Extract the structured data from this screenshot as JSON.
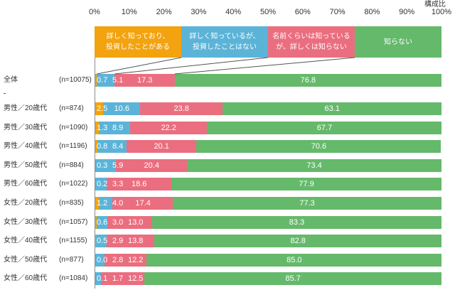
{
  "chart_data": {
    "type": "bar",
    "orientation": "horizontal",
    "stacked": true,
    "axis_title": "構成比",
    "x_ticks": [
      "0%",
      "10%",
      "20%",
      "30%",
      "40%",
      "50%",
      "60%",
      "70%",
      "80%",
      "90%",
      "100%"
    ],
    "xlim": [
      0,
      100
    ],
    "grid": false,
    "legend": "top",
    "data_label_color": "#FFFFFF",
    "categories": [
      "全体",
      "男性／20歳代",
      "男性／30歳代",
      "男性／40歳代",
      "男性／50歳代",
      "男性／60歳代",
      "女性／20歳代",
      "女性／30歳代",
      "女性／40歳代",
      "女性／50歳代",
      "女性／60歳代"
    ],
    "n_labels": [
      "(n=10075)",
      "(n=874)",
      "(n=1090)",
      "(n=1196)",
      "(n=884)",
      "(n=1022)",
      "(n=835)",
      "(n=1057)",
      "(n=1155)",
      "(n=877)",
      "(n=1084)"
    ],
    "series": [
      {
        "name_lines": [
          "詳しく知っており、",
          "投資したことがある"
        ],
        "color": "#F2A30F",
        "values": [
          0.7,
          2.5,
          1.3,
          0.8,
          0.3,
          0.2,
          1.2,
          0.6,
          0.5,
          0.0,
          0.1
        ]
      },
      {
        "name_lines": [
          "詳しく知っているが、",
          "投資したことはない"
        ],
        "color": "#5BB4D8",
        "values": [
          5.1,
          10.6,
          8.9,
          8.4,
          5.9,
          3.3,
          4.0,
          3.0,
          2.9,
          2.8,
          1.7
        ]
      },
      {
        "name_lines": [
          "名前くらいは知っている",
          "が、詳しくは知らない"
        ],
        "color": "#EA6E7F",
        "values": [
          17.3,
          23.8,
          22.2,
          20.1,
          20.4,
          18.6,
          17.4,
          13.0,
          13.8,
          12.2,
          12.5
        ]
      },
      {
        "name_lines": [
          "知らない"
        ],
        "color": "#65B96B",
        "values": [
          76.8,
          63.1,
          67.7,
          70.6,
          73.4,
          77.9,
          77.3,
          83.3,
          82.8,
          85.0,
          85.7
        ]
      }
    ]
  }
}
